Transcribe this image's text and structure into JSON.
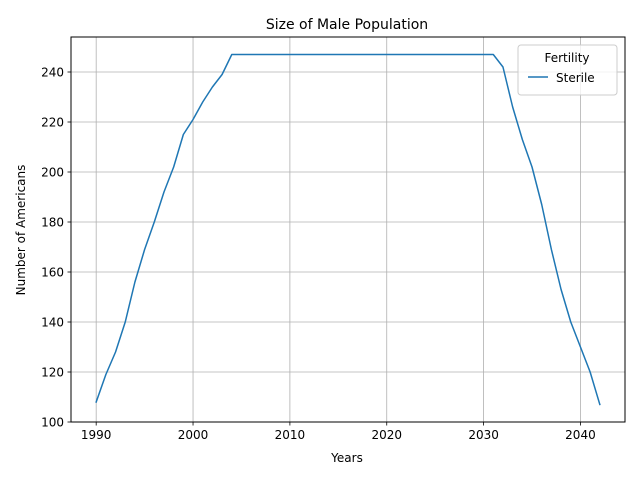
{
  "chart_data": {
    "type": "line",
    "title": "Size of Male Population",
    "xlabel": "Years",
    "ylabel": "Number of Americans",
    "xlim": [
      1987.4,
      2044.6
    ],
    "ylim": [
      100,
      254
    ],
    "xticks": [
      1990,
      2000,
      2010,
      2020,
      2030,
      2040
    ],
    "yticks": [
      100,
      120,
      140,
      160,
      180,
      200,
      220,
      240
    ],
    "grid": true,
    "legend": {
      "title": "Fertility",
      "placement": "top-right"
    },
    "series": [
      {
        "name": "Sterile",
        "color": "#1f77b4",
        "x": [
          1990,
          1991,
          1992,
          1993,
          1994,
          1995,
          1996,
          1997,
          1998,
          1999,
          2000,
          2001,
          2002,
          2003,
          2004,
          2005,
          2010,
          2015,
          2020,
          2025,
          2030,
          2031,
          2032,
          2033,
          2034,
          2035,
          2036,
          2037,
          2038,
          2039,
          2040,
          2041,
          2042
        ],
        "y": [
          108,
          119,
          128,
          140,
          156,
          169,
          180,
          192,
          202,
          215,
          221,
          228,
          234,
          239,
          247,
          247,
          247,
          247,
          247,
          247,
          247,
          247,
          242,
          226,
          213,
          202,
          187,
          169,
          153,
          140,
          130,
          120,
          107
        ]
      }
    ]
  }
}
